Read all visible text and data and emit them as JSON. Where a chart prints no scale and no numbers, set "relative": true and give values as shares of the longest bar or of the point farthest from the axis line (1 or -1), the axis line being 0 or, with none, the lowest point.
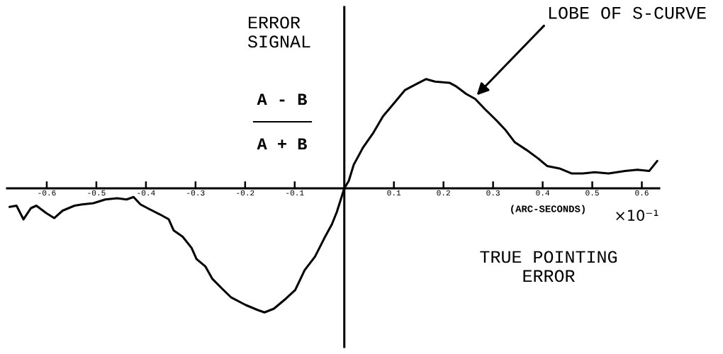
{
  "chart_data": {
    "type": "line",
    "relative": true,
    "xlabel": "TRUE POINTING\nERROR",
    "ylabel": "ERROR\nSIGNAL",
    "annotations": [
      "A - B",
      "A + B",
      {
        "text": "LOBE OF S-CURVE",
        "x": 0.267,
        "y": 0.75
      },
      "(ARC-SECONDS)",
      "×10⁻¹"
    ],
    "x": [
      -0.675,
      -0.661,
      -0.647,
      -0.632,
      -0.621,
      -0.601,
      -0.585,
      -0.568,
      -0.544,
      -0.529,
      -0.506,
      -0.482,
      -0.458,
      -0.439,
      -0.425,
      -0.411,
      -0.392,
      -0.372,
      -0.354,
      -0.344,
      -0.326,
      -0.308,
      -0.298,
      -0.28,
      -0.266,
      -0.246,
      -0.228,
      -0.199,
      -0.175,
      -0.161,
      -0.142,
      -0.118,
      -0.099,
      -0.08,
      -0.059,
      -0.04,
      -0.025,
      -0.015,
      0,
      0.009,
      0.019,
      0.038,
      0.059,
      0.078,
      0.097,
      0.122,
      0.136,
      0.165,
      0.183,
      0.212,
      0.226,
      0.246,
      0.264,
      0.283,
      0.306,
      0.325,
      0.344,
      0.367,
      0.391,
      0.409,
      0.434,
      0.458,
      0.481,
      0.505,
      0.533,
      0.566,
      0.591,
      0.615,
      0.631
    ],
    "series": [
      {
        "color": "#000000",
        "values": [
          -0.15,
          -0.14,
          -0.25,
          -0.16,
          -0.14,
          -0.2,
          -0.24,
          -0.18,
          -0.14,
          -0.13,
          -0.12,
          -0.09,
          -0.08,
          -0.09,
          -0.07,
          -0.13,
          -0.17,
          -0.21,
          -0.25,
          -0.34,
          -0.39,
          -0.48,
          -0.57,
          -0.63,
          -0.73,
          -0.81,
          -0.88,
          -0.94,
          -0.98,
          -1.0,
          -0.97,
          -0.89,
          -0.82,
          -0.66,
          -0.55,
          -0.4,
          -0.29,
          -0.19,
          0,
          0.06,
          0.19,
          0.33,
          0.45,
          0.58,
          0.67,
          0.79,
          0.82,
          0.88,
          0.86,
          0.85,
          0.82,
          0.76,
          0.72,
          0.64,
          0.55,
          0.47,
          0.37,
          0.31,
          0.24,
          0.18,
          0.16,
          0.12,
          0.12,
          0.13,
          0.12,
          0.14,
          0.15,
          0.14,
          0.22
        ]
      }
    ],
    "xlim": [
      -0.68,
      0.635
    ],
    "xticks": [
      -0.6,
      -0.5,
      -0.4,
      -0.3,
      -0.2,
      -0.1,
      0.1,
      0.2,
      0.3,
      0.4,
      0.5,
      0.6
    ],
    "tick_labels": "x",
    "line_style": "solid"
  }
}
